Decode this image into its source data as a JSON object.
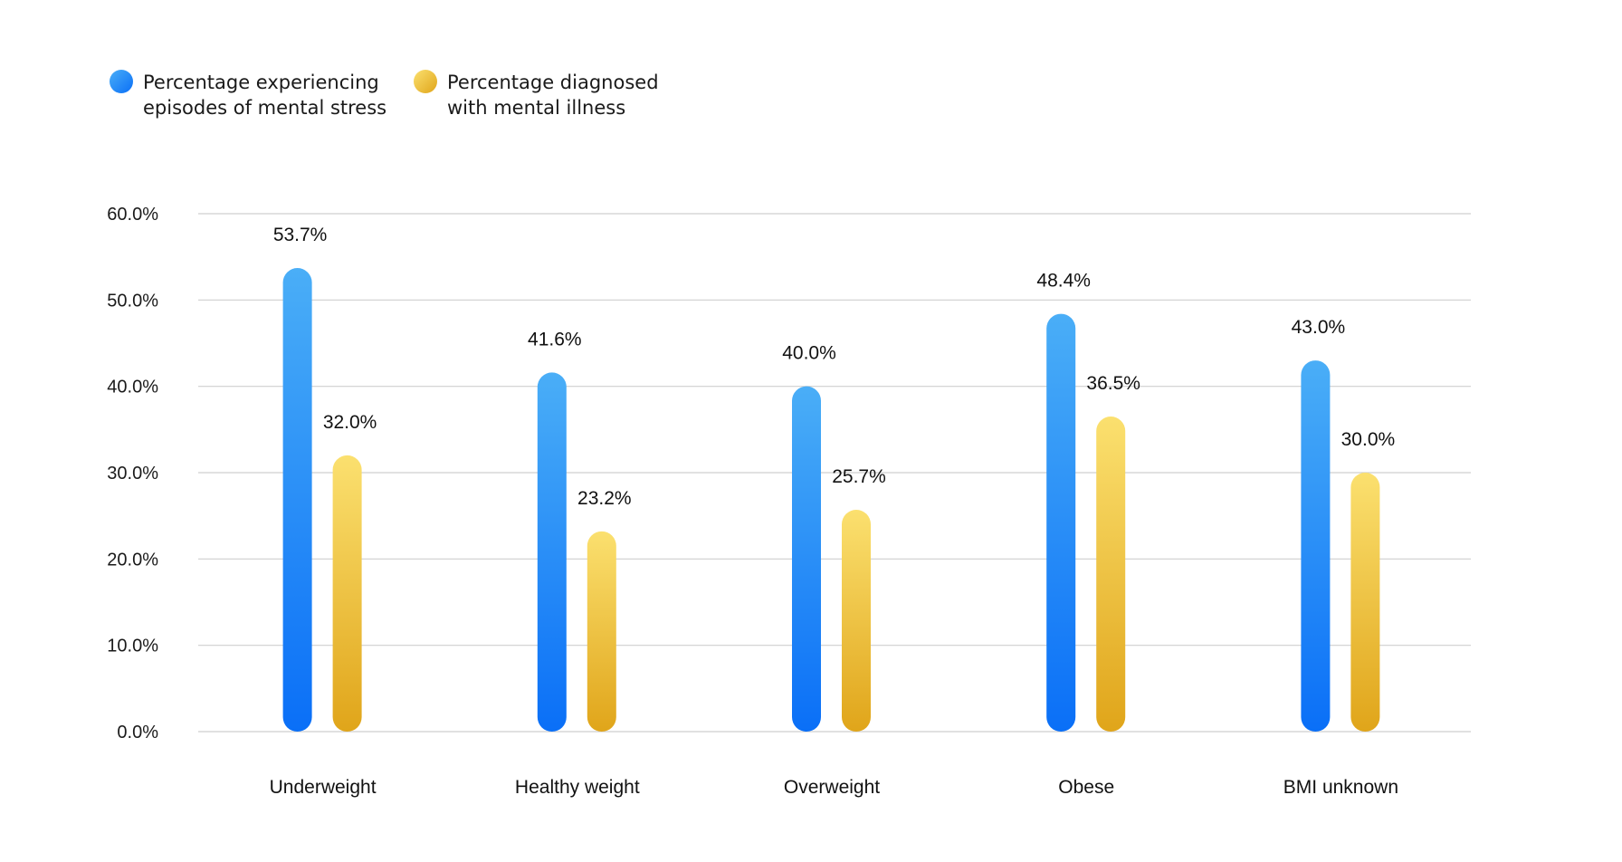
{
  "chart_data": {
    "type": "bar",
    "categories": [
      "Underweight",
      "Healthy weight",
      "Overweight",
      "Obese",
      "BMI unknown"
    ],
    "series": [
      {
        "name": "Percentage experiencing episodes of mental stress",
        "legend_lines": [
          "Percentage experiencing",
          "episodes of mental stress"
        ],
        "values": [
          53.7,
          41.6,
          40.0,
          48.4,
          43.0
        ],
        "labels": [
          "53.7%",
          "41.6%",
          "40.0%",
          "48.4%",
          "43.0%"
        ],
        "color_top": "#4aaef7",
        "color_bottom": "#0a6ff7"
      },
      {
        "name": "Percentage diagnosed with mental illness",
        "legend_lines": [
          "Percentage diagnosed",
          "with mental illness"
        ],
        "values": [
          32.0,
          23.2,
          25.7,
          36.5,
          30.0
        ],
        "labels": [
          "32.0%",
          "23.2%",
          "25.7%",
          "36.5%",
          "30.0%"
        ],
        "color_top": "#fbe06f",
        "color_bottom": "#e0a51a"
      }
    ],
    "yticks": [
      "0.0%",
      "10.0%",
      "20.0%",
      "30.0%",
      "40.0%",
      "50.0%",
      "60.0%"
    ],
    "ylim": [
      0,
      60
    ],
    "grid": true,
    "legend_position": "top-left",
    "title": "",
    "xlabel": "",
    "ylabel": ""
  }
}
